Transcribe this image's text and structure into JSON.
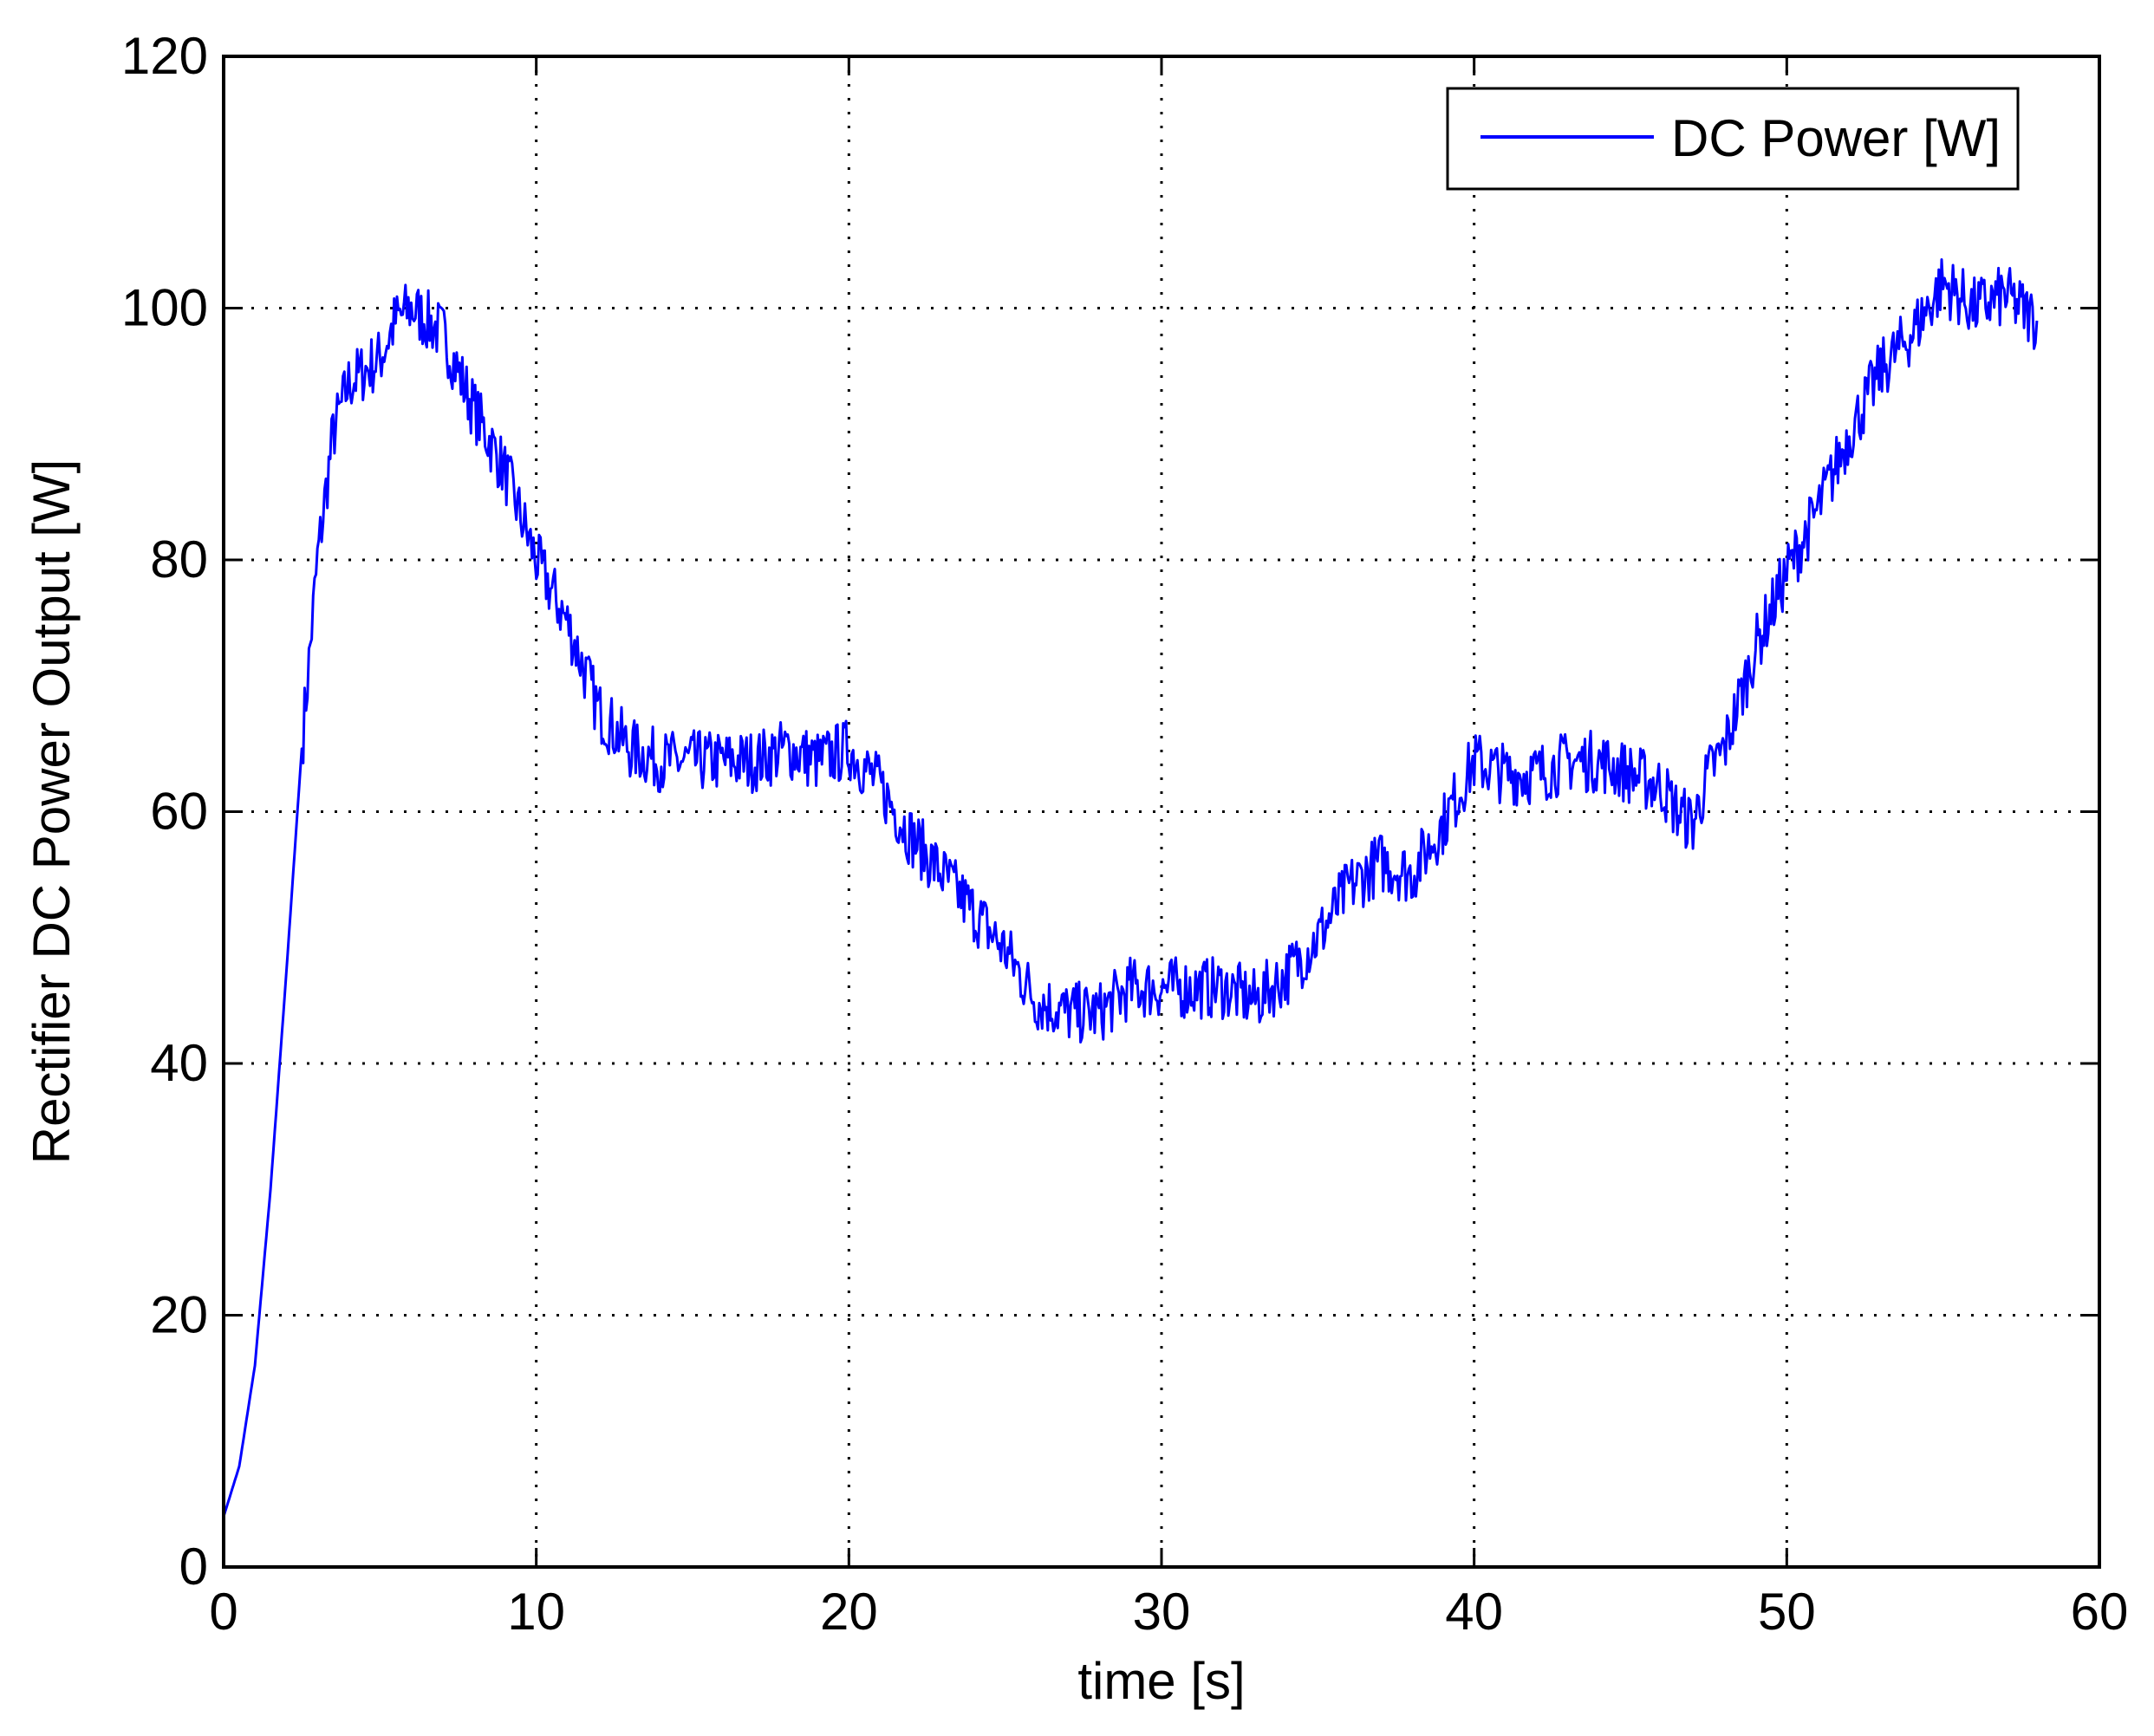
{
  "chart_data": {
    "type": "line",
    "title": "",
    "xlabel": "time [s]",
    "ylabel": "Rectifier DC Power Output  [W]",
    "xlim": [
      0,
      60
    ],
    "ylim": [
      0,
      120
    ],
    "xticks": [
      "0",
      "10",
      "20",
      "30",
      "40",
      "50",
      "60"
    ],
    "yticks": [
      "0",
      "20",
      "40",
      "60",
      "80",
      "100",
      "120"
    ],
    "grid": true,
    "legend_position": "top-right",
    "series": [
      {
        "name": "DC Power [W]",
        "color": "#0000ff",
        "x": [
          0,
          0.5,
          1,
          1.5,
          2,
          2.5,
          3,
          3.5,
          4,
          4.5,
          5,
          5.5,
          6,
          6.5,
          7,
          7.5,
          8,
          9,
          10,
          11,
          12,
          13,
          14,
          15,
          16,
          17,
          18,
          19,
          20,
          21,
          22,
          23,
          24,
          25,
          26,
          27,
          28,
          29,
          30,
          31,
          32,
          33,
          34,
          35,
          36,
          37,
          38,
          39,
          40,
          41,
          42,
          43,
          44,
          45,
          46,
          46.5,
          47,
          47.5,
          48,
          49,
          50,
          51,
          52,
          53,
          54,
          55,
          56,
          57,
          58
        ],
        "y": [
          4,
          8,
          16,
          30,
          47,
          65,
          80,
          90,
          94,
          95,
          96,
          99,
          100,
          99,
          98,
          95,
          92,
          87,
          80,
          75,
          68,
          65,
          64,
          64,
          64,
          64,
          65,
          64,
          65,
          62,
          58,
          55,
          52,
          49,
          45,
          44,
          44,
          46,
          46,
          46,
          46,
          45,
          47,
          50,
          54,
          56,
          55,
          59,
          64,
          63,
          63,
          64,
          64,
          63,
          62,
          60,
          59,
          63,
          65,
          73,
          79,
          84,
          90,
          95,
          98,
          102,
          100,
          101,
          99
        ]
      }
    ]
  }
}
